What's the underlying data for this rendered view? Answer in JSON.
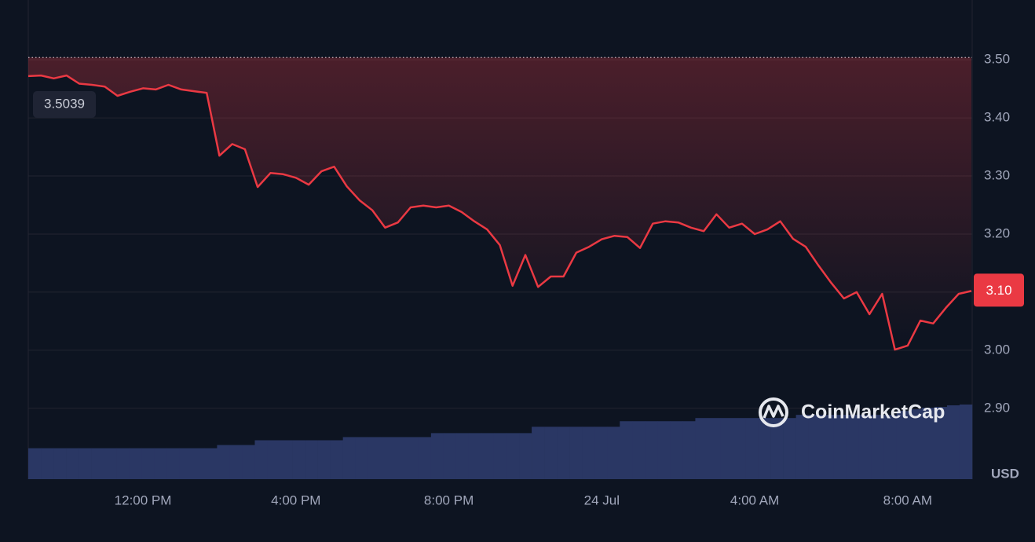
{
  "chart_data": {
    "type": "line",
    "unit_label": "USD",
    "watermark": "CoinMarketCap",
    "reference_line": {
      "value": 3.5039,
      "label": "3.5039"
    },
    "current_price_label": "3.10",
    "color": "#ea3943",
    "volume_color": "#2a3764",
    "grid": true,
    "categories": [
      null,
      null,
      null,
      null,
      null,
      null,
      null,
      null,
      null,
      "12:00 PM",
      null,
      null,
      null,
      null,
      null,
      null,
      null,
      null,
      null,
      null,
      null,
      "4:00 PM",
      null,
      null,
      null,
      null,
      null,
      null,
      null,
      null,
      null,
      null,
      null,
      "8:00 PM",
      null,
      null,
      null,
      null,
      null,
      null,
      null,
      null,
      null,
      null,
      null,
      "24 Jul",
      null,
      null,
      null,
      null,
      null,
      null,
      null,
      null,
      null,
      null,
      null,
      "4:00 AM",
      null,
      null,
      null,
      null,
      null,
      null,
      null,
      null,
      null,
      null,
      null,
      "8:00 AM",
      null,
      null,
      null,
      null,
      null
    ],
    "values": [
      3.472,
      3.473,
      3.468,
      3.473,
      3.459,
      3.457,
      3.454,
      3.438,
      3.445,
      3.451,
      3.449,
      3.457,
      3.449,
      3.446,
      3.443,
      3.335,
      3.355,
      3.346,
      3.281,
      3.305,
      3.303,
      3.297,
      3.285,
      3.308,
      3.316,
      3.282,
      3.258,
      3.241,
      3.211,
      3.22,
      3.246,
      3.249,
      3.246,
      3.249,
      3.238,
      3.222,
      3.208,
      3.181,
      3.111,
      3.164,
      3.109,
      3.127,
      3.127,
      3.168,
      3.178,
      3.191,
      3.197,
      3.195,
      3.176,
      3.218,
      3.222,
      3.22,
      3.211,
      3.205,
      3.234,
      3.211,
      3.218,
      3.2,
      3.208,
      3.222,
      3.192,
      3.178,
      3.146,
      3.116,
      3.089,
      3.1,
      3.062,
      3.097,
      3.001,
      3.008,
      3.051,
      3.046,
      3.073,
      3.097,
      3.102
    ],
    "volume_values": [
      39,
      39,
      39,
      39,
      39,
      39,
      39,
      39,
      39,
      39,
      39,
      39,
      39,
      39,
      39,
      43,
      43,
      43,
      49,
      49,
      49,
      49,
      49,
      49,
      49,
      53,
      53,
      53,
      53,
      53,
      53,
      53,
      58,
      58,
      58,
      58,
      58,
      58,
      58,
      58,
      66,
      66,
      66,
      66,
      66,
      66,
      66,
      73,
      73,
      73,
      73,
      73,
      73,
      77,
      77,
      77,
      77,
      77,
      77,
      77,
      77,
      81,
      81,
      81,
      81,
      81,
      81,
      81,
      81,
      86,
      88,
      90,
      91,
      93,
      94
    ],
    "ylim": [
      2.778,
      3.603
    ],
    "yticks": [
      {
        "value": 2.9,
        "label": "2.90"
      },
      {
        "value": 3.0,
        "label": "3.00"
      },
      {
        "value": 3.1,
        "label": "3.10"
      },
      {
        "value": 3.2,
        "label": "3.20"
      },
      {
        "value": 3.3,
        "label": "3.30"
      },
      {
        "value": 3.4,
        "label": "3.40"
      },
      {
        "value": 3.5,
        "label": "3.50"
      }
    ]
  }
}
